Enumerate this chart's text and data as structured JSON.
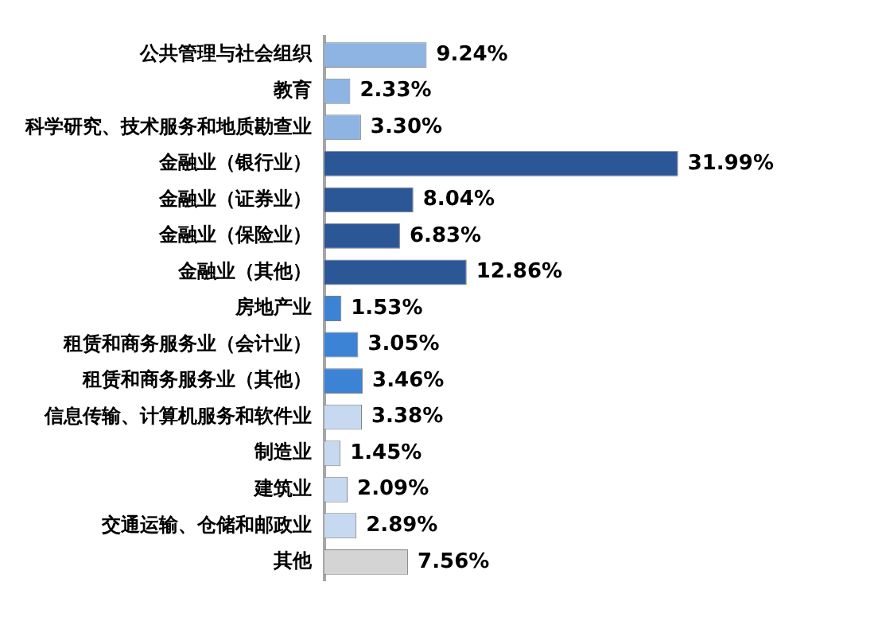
{
  "chart_data": {
    "type": "bar",
    "orientation": "horizontal",
    "categories": [
      "公共管理与社会组织",
      "教育",
      "科学研究、技术服务和地质勘查业",
      "金融业（银行业）",
      "金融业（证券业）",
      "金融业（保险业）",
      "金融业（其他）",
      "房地产业",
      "租赁和商务服务业（会计业）",
      "租赁和商务服务业（其他）",
      "信息传输、计算机服务和软件业",
      "制造业",
      "建筑业",
      "交通运输、仓储和邮政业",
      "其他"
    ],
    "values": [
      9.24,
      2.33,
      3.3,
      31.99,
      8.04,
      6.83,
      12.86,
      1.53,
      3.05,
      3.46,
      3.38,
      1.45,
      2.09,
      2.89,
      7.56
    ],
    "value_labels": [
      "9.24%",
      "2.33%",
      "3.30%",
      "31.99%",
      "8.04%",
      "6.83%",
      "12.86%",
      "1.53%",
      "3.05%",
      "3.46%",
      "3.38%",
      "1.45%",
      "2.09%",
      "2.89%",
      "7.56%"
    ],
    "colors": [
      "#8db4e2",
      "#8db4e2",
      "#8db4e2",
      "#2b5797",
      "#2b5797",
      "#2b5797",
      "#2b5797",
      "#3c83d6",
      "#3c83d6",
      "#3c83d6",
      "#c6d9f1",
      "#c6d9f1",
      "#c6d9f1",
      "#c6d9f1",
      "#d4d4d4"
    ],
    "grid": false,
    "legend": false,
    "tick_labels": "y"
  }
}
